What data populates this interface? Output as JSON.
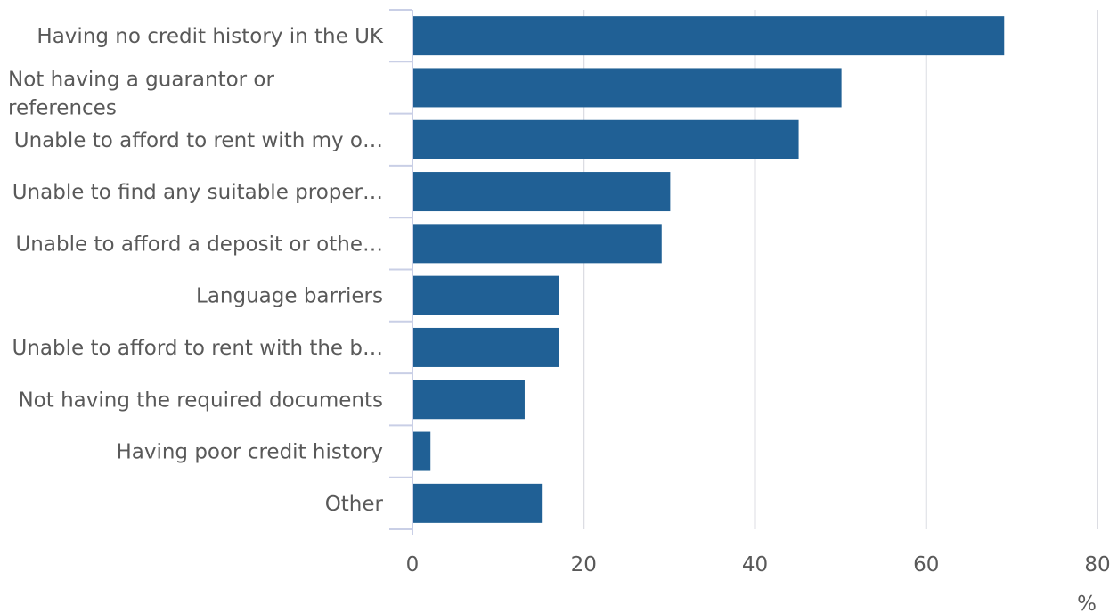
{
  "chart_data": {
    "type": "bar",
    "orientation": "horizontal",
    "categories": [
      "Having no credit history in the UK",
      "Not having a guarantor or references",
      "Unable to afford to rent with my o…",
      "Unable to find any suitable proper…",
      "Unable to afford a deposit or othe…",
      "Language barriers",
      "Unable to afford to rent with the b…",
      "Not having the required documents",
      "Having poor credit history",
      "Other"
    ],
    "values": [
      69,
      50,
      45,
      30,
      29,
      17,
      17,
      13,
      2,
      15
    ],
    "xlim": [
      0,
      80
    ],
    "xticks": [
      "0",
      "20",
      "40",
      "60",
      "80"
    ],
    "x_unit_label": "%",
    "grid": "vertical",
    "bar_color": "#206095",
    "text_color": "#595959"
  }
}
